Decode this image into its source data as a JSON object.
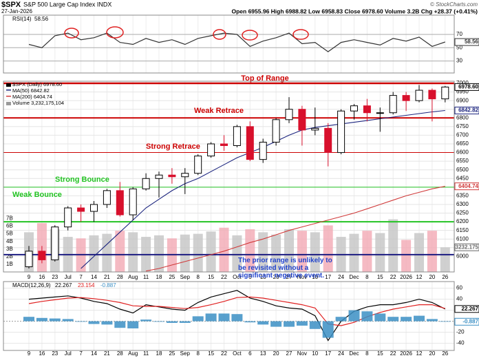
{
  "header": {
    "symbol": "$SPX",
    "name": "S&P 500 Large Cap Index INDX",
    "date": "27-Jan-2026",
    "quote": "Open 6955.96 High 6988.82 Low 6958.83 Close 6978.60 Volume 3.2B Chg +28.37 (+0.41%)",
    "credit": "© StockCharts.com"
  },
  "chart_data": [
    {
      "type": "line",
      "title": "RSI(14)",
      "last_value_label": "58.56",
      "series": [
        {
          "color": "#333333",
          "values": [
            55,
            50,
            68,
            72,
            62,
            65,
            72,
            58,
            55,
            64,
            58,
            62,
            55,
            64,
            68,
            72,
            70,
            52,
            60,
            65,
            72,
            56,
            58,
            44,
            58,
            62,
            58,
            54,
            64,
            60,
            66,
            52,
            58.56
          ]
        }
      ],
      "ylim": [
        12,
        99
      ],
      "yticks": [
        30,
        50,
        70
      ],
      "grid": true
    },
    {
      "type": "candlestick",
      "legend": [
        "$SPX (Daily) 6978.60",
        "MA(50) 6842.82",
        "MA(200) 6404.74",
        "Volume 3,232,175,104"
      ],
      "categories": [
        "9",
        "16",
        "23",
        "Jul",
        "7",
        "14",
        "21",
        "28",
        "Aug",
        "11",
        "18",
        "25",
        "Sep",
        "8",
        "15",
        "22",
        "Oct",
        "6",
        "13",
        "20",
        "27",
        "Nov",
        "10",
        "17",
        "24",
        "Dec",
        "8",
        "15",
        "22",
        "2026",
        "12",
        "20",
        "26"
      ],
      "open": [
        5940,
        6030,
        5980,
        6170,
        6280,
        6260,
        6300,
        6380,
        6240,
        6390,
        6450,
        6470,
        6460,
        6480,
        6580,
        6650,
        6640,
        6750,
        6560,
        6660,
        6790,
        6850,
        6730,
        6740,
        6600,
        6840,
        6870,
        6830,
        6830,
        6930,
        6900,
        6960,
        6910
      ],
      "high": [
        6060,
        6060,
        6180,
        6290,
        6300,
        6320,
        6390,
        6430,
        6400,
        6480,
        6490,
        6510,
        6510,
        6590,
        6660,
        6700,
        6760,
        6780,
        6680,
        6800,
        6920,
        6870,
        6860,
        6770,
        6850,
        6880,
        6910,
        6860,
        6950,
        6950,
        6990,
        6970,
        6985
      ],
      "low": [
        5930,
        5960,
        5970,
        6150,
        6200,
        6200,
        6280,
        6230,
        6210,
        6380,
        6340,
        6420,
        6360,
        6470,
        6570,
        6610,
        6630,
        6550,
        6540,
        6640,
        6770,
        6640,
        6700,
        6520,
        6590,
        6790,
        6780,
        6720,
        6820,
        6840,
        6890,
        6780,
        6890
      ],
      "close": [
        6030,
        5980,
        6170,
        6280,
        6260,
        6300,
        6380,
        6240,
        6390,
        6450,
        6470,
        6460,
        6480,
        6580,
        6650,
        6640,
        6750,
        6560,
        6660,
        6790,
        6850,
        6730,
        6740,
        6600,
        6840,
        6870,
        6830,
        6830,
        6930,
        6900,
        6960,
        6910,
        6978.6
      ],
      "up_color": "#000000",
      "down_color": "#d8102c",
      "series": [
        {
          "name": "MA(50)",
          "color": "#1a237e",
          "values": [
            null,
            null,
            null,
            null,
            5930,
            6000,
            6070,
            6140,
            6210,
            6280,
            6330,
            6380,
            6420,
            6450,
            6490,
            6530,
            6570,
            6600,
            6630,
            6665,
            6700,
            6730,
            6745,
            6755,
            6765,
            6775,
            6785,
            6795,
            6805,
            6815,
            6825,
            6835,
            6842.82
          ]
        },
        {
          "name": "MA(200)",
          "color": "#d03a3a",
          "values": [
            null,
            null,
            null,
            null,
            null,
            null,
            null,
            null,
            null,
            5915,
            5930,
            5950,
            5970,
            5990,
            6010,
            6030,
            6055,
            6080,
            6100,
            6125,
            6150,
            6170,
            6190,
            6210,
            6230,
            6250,
            6275,
            6300,
            6325,
            6350,
            6370,
            6390,
            6404.74
          ]
        }
      ],
      "last_labels": {
        "close": "6978.60",
        "ma50": "6842.82",
        "ma200": "6404.74",
        "volume": "3232.175"
      },
      "ylim": [
        5910,
        7012
      ],
      "yticks": [
        6000,
        6050,
        6100,
        6150,
        6200,
        6250,
        6300,
        6350,
        6400,
        6450,
        6500,
        6550,
        6600,
        6650,
        6700,
        6750,
        6800,
        6850,
        6900,
        6950,
        7000
      ],
      "grid": true,
      "volume": {
        "values": [
          5.2,
          6.4,
          5.6,
          4.6,
          4.4,
          4.8,
          5.0,
          5.4,
          5.2,
          4.6,
          4.8,
          4.4,
          4.9,
          5.0,
          5.3,
          5.8,
          4.8,
          5.6,
          5.2,
          4.9,
          5.6,
          5.4,
          5.2,
          6.1,
          4.6,
          5.0,
          5.4,
          5.1,
          6.9,
          4.2,
          5.1,
          5.4,
          3.23
        ],
        "ylim": [
          0,
          25
        ],
        "up_color": "#c4c4c4",
        "down_color": "#f2a9b4",
        "yticks": [
          {
            "value": 1,
            "label": "1B"
          },
          {
            "value": 2,
            "label": "2B"
          },
          {
            "value": 3,
            "label": "3B"
          },
          {
            "value": 4,
            "label": "4B"
          },
          {
            "value": 5,
            "label": "5B"
          },
          {
            "value": 6,
            "label": "6B"
          },
          {
            "value": 7,
            "label": "7B"
          }
        ]
      },
      "levels": [
        {
          "label": "Top of Range",
          "value": 7000,
          "color": "#cc0000"
        },
        {
          "label": "Weak Retrace",
          "value": 6800,
          "color": "#cc0000"
        },
        {
          "label": "Strong Retrace",
          "value": 6600,
          "color": "#cc0000"
        },
        {
          "label": "Strong Bounce",
          "value": 6400,
          "color": "#22c322"
        },
        {
          "label": "Weak Bounce",
          "value": 6200,
          "color": "#22c322"
        }
      ],
      "prior_range_line": {
        "value": 6010,
        "color": "#1a1a80"
      },
      "annotation": "The prior range is unlikely to be revisited without a significant negative event."
    },
    {
      "type": "line",
      "title": "MACD(12,26,9)",
      "legend_values": [
        "22.267",
        "23.154",
        "-0.887"
      ],
      "categories": [
        "9",
        "16",
        "23",
        "Jul",
        "7",
        "14",
        "21",
        "28",
        "Aug",
        "11",
        "18",
        "25",
        "Sep",
        "8",
        "15",
        "22",
        "Oct",
        "6",
        "13",
        "20",
        "27",
        "Nov",
        "10",
        "17",
        "24",
        "Dec",
        "8",
        "15",
        "22",
        "2026",
        "12",
        "20",
        "26"
      ],
      "series": [
        {
          "color": "#000000",
          "values": [
            40,
            42,
            44,
            46,
            42,
            36,
            32,
            22,
            15,
            30,
            26,
            22,
            20,
            34,
            44,
            50,
            56,
            42,
            36,
            28,
            24,
            22,
            10,
            -35,
            0,
            18,
            26,
            30,
            30,
            34,
            40,
            34,
            22.267
          ]
        },
        {
          "color": "#e02020",
          "values": [
            32,
            36,
            39,
            42,
            43,
            41,
            38,
            34,
            28,
            27,
            27,
            25,
            23,
            25,
            30,
            36,
            43,
            44,
            42,
            38,
            34,
            30,
            24,
            -5,
            -8,
            -2,
            8,
            16,
            22,
            26,
            30,
            30,
            23.154
          ]
        },
        {
          "type": "bar",
          "color": "#3b8fc4",
          "values": [
            8,
            6,
            5,
            4,
            -1,
            -5,
            -6,
            -12,
            -13,
            3,
            -1,
            -3,
            -3,
            9,
            14,
            14,
            13,
            -2,
            -6,
            -10,
            -10,
            -8,
            -14,
            -30,
            8,
            20,
            18,
            14,
            8,
            8,
            10,
            4,
            -0.887
          ]
        }
      ],
      "ylim": [
        -53,
        72
      ],
      "yticks": [
        60,
        40,
        20,
        -20,
        -40
      ],
      "grid": true
    }
  ]
}
